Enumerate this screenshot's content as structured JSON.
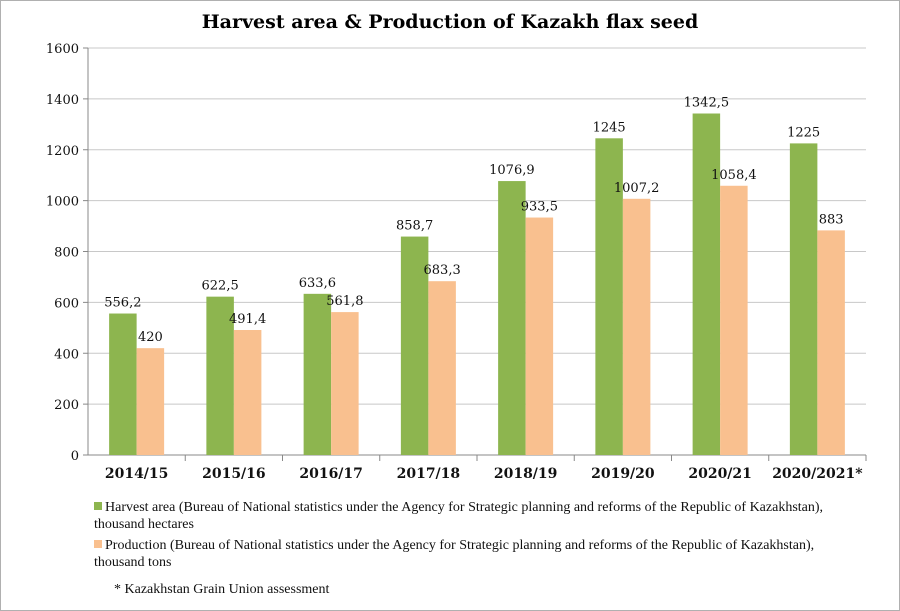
{
  "chart_data": {
    "type": "bar",
    "title": "Harvest area & Production of Kazakh flax seed",
    "categories": [
      "2014/15",
      "2015/16",
      "2016/17",
      "2017/18",
      "2018/19",
      "2019/20",
      "2020/21",
      "2020/2021*"
    ],
    "series": [
      {
        "name": "Harvest area (Bureau of National statistics under the Agency for Strategic planning and reforms of the Republic of Kazakhstan), thousand hectares",
        "color": "#8db54f",
        "values": [
          556.2,
          622.5,
          633.6,
          858.7,
          1076.9,
          1245,
          1342.5,
          1225
        ],
        "labels": [
          "556,2",
          "622,5",
          "633,6",
          "858,7",
          "1076,9",
          "1245",
          "1342,5",
          "1225"
        ]
      },
      {
        "name": "Production (Bureau of National statistics under the Agency for Strategic planning and reforms of the Republic of Kazakhstan), thousand tons",
        "color": "#f9c08f",
        "values": [
          420,
          491.4,
          561.8,
          683.3,
          933.5,
          1007.2,
          1058.4,
          883
        ],
        "labels": [
          "420",
          "491,4",
          "561,8",
          "683,3",
          "933,5",
          "1007,2",
          "1058,4",
          "883"
        ]
      }
    ],
    "ylim": [
      0,
      1600
    ],
    "yticks": [
      "0",
      "200",
      "400",
      "600",
      "800",
      "1000",
      "1200",
      "1400",
      "1600"
    ],
    "grid": true,
    "legend_position": "bottom",
    "xlabel": "",
    "ylabel": ""
  },
  "note": "* Kazakhstan Grain Union assessment"
}
